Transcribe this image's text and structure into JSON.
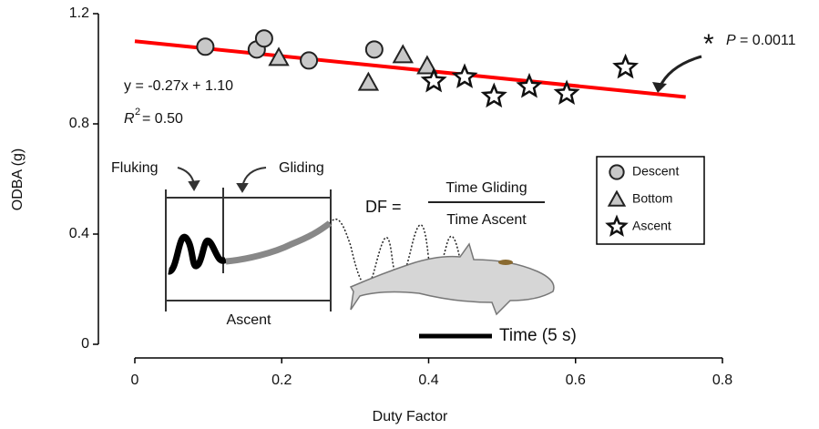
{
  "chart_data": {
    "type": "scatter",
    "x_label": "Duty Factor",
    "y_label": "ODBA (g)",
    "xlim": [
      0,
      0.8
    ],
    "ylim": [
      0,
      1.2
    ],
    "xticks": [
      0,
      0.2,
      0.4,
      0.6,
      0.8
    ],
    "yticks": [
      0,
      0.4,
      0.8,
      1.2
    ],
    "series": [
      {
        "name": "Descent",
        "marker": "circle",
        "color": "#c8c8c8",
        "x": [
          0.096,
          0.166,
          0.176,
          0.237,
          0.326
        ],
        "values": [
          1.08,
          1.07,
          1.11,
          1.03,
          1.07
        ]
      },
      {
        "name": "Bottom",
        "marker": "triangle",
        "color": "#c8c8c8",
        "x": [
          0.196,
          0.318,
          0.365,
          0.398
        ],
        "values": [
          1.04,
          0.95,
          1.05,
          1.01
        ]
      },
      {
        "name": "Ascent",
        "marker": "star",
        "color": "#ffffff",
        "x": [
          0.407,
          0.449,
          0.489,
          0.537,
          0.588,
          0.668
        ],
        "values": [
          0.955,
          0.97,
          0.9,
          0.935,
          0.91,
          1.005
        ]
      }
    ],
    "fit_line": {
      "color": "#ff0000",
      "x": [
        0,
        0.75
      ],
      "values": [
        1.1,
        0.8975
      ]
    },
    "annotations": {
      "equation": "y = -0.27x + 1.10",
      "r2_symbol": "R",
      "r2_exp": "2",
      "r2_value": "= 0.50",
      "p_star": "*",
      "p_symbol": "P",
      "p_value": "= 0.0011"
    },
    "inset": {
      "fluking": "Fluking",
      "gliding": "Gliding",
      "ascent": "Ascent",
      "df_label": "DF =",
      "df_numerator": "Time Gliding",
      "df_denominator": "Time Ascent",
      "time_scale": "Time (5 s)"
    }
  }
}
